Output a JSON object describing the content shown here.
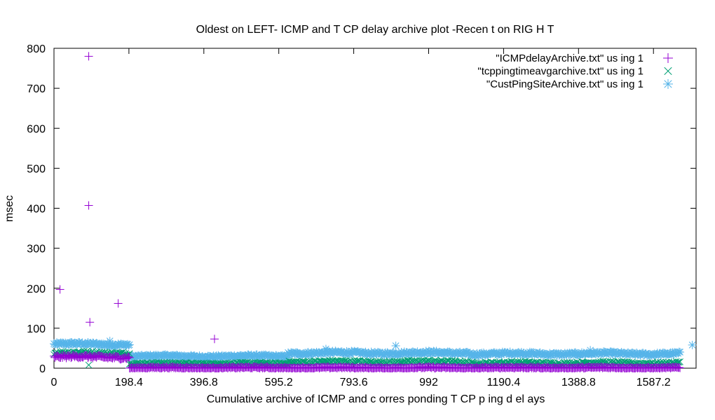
{
  "chart_data": {
    "type": "scatter",
    "title": "Oldest on LEFT- ICMP  and T CP  delay archive plot  -Recen  t on RIG  H T",
    "xlabel": "Cumulative archive of ICMP  and c orres ponding T CP p ing d el ays",
    "ylabel": "msec",
    "xlim": [
      0,
      1700
    ],
    "ylim": [
      0,
      800
    ],
    "xticks": [
      "0",
      "198.4",
      "396.8",
      "595.2",
      "793.6",
      "992",
      "1190.4",
      "1388.8",
      "1587.2"
    ],
    "xtick_values": [
      0,
      198.4,
      396.8,
      595.2,
      793.6,
      992,
      1190.4,
      1388.8,
      1587.2
    ],
    "yticks": [
      "0",
      "100",
      "200",
      "300",
      "400",
      "500",
      "600",
      "700",
      "800"
    ],
    "ytick_values": [
      0,
      100,
      200,
      300,
      400,
      500,
      600,
      700,
      800
    ],
    "legend_position": "top-right",
    "series": [
      {
        "name": "\"ICMPdelayArchive.txt\" us ing  1",
        "marker": "plus",
        "color": "#9400d3",
        "segments": [
          {
            "x0": 0,
            "x1": 200,
            "y": 28,
            "jitter": 4
          },
          {
            "x0": 200,
            "x1": 1740,
            "y": 1,
            "jitter": 2
          }
        ],
        "outliers": [
          [
            16,
            197
          ],
          [
            92,
            780
          ],
          [
            92,
            407
          ],
          [
            95,
            115
          ],
          [
            170,
            162
          ],
          [
            425,
            73
          ]
        ]
      },
      {
        "name": "\"tcppingtimeavgarchive.txt\" us ing 1",
        "marker": "x",
        "color": "#009e73",
        "segments": [
          {
            "x0": 0,
            "x1": 200,
            "y": 38,
            "jitter": 4
          },
          {
            "x0": 200,
            "x1": 620,
            "y": 12,
            "jitter": 2
          },
          {
            "x0": 620,
            "x1": 1100,
            "y": 16,
            "jitter": 3
          },
          {
            "x0": 1100,
            "x1": 1740,
            "y": 13,
            "jitter": 3
          }
        ],
        "outliers": [
          [
            92,
            8
          ]
        ]
      },
      {
        "name": "\"CustPingSiteArchive.txt\" us ing 1",
        "marker": "star",
        "color": "#56b4e9",
        "segments": [
          {
            "x0": 0,
            "x1": 200,
            "y": 60,
            "jitter": 4
          },
          {
            "x0": 200,
            "x1": 620,
            "y": 30,
            "jitter": 3
          },
          {
            "x0": 620,
            "x1": 1100,
            "y": 38,
            "jitter": 4
          },
          {
            "x0": 1100,
            "x1": 1740,
            "y": 36,
            "jitter": 4
          }
        ],
        "outliers": [
          [
            148,
            68
          ],
          [
            720,
            48
          ],
          [
            905,
            56
          ],
          [
            1420,
            45
          ],
          [
            1690,
            58
          ]
        ]
      }
    ]
  }
}
